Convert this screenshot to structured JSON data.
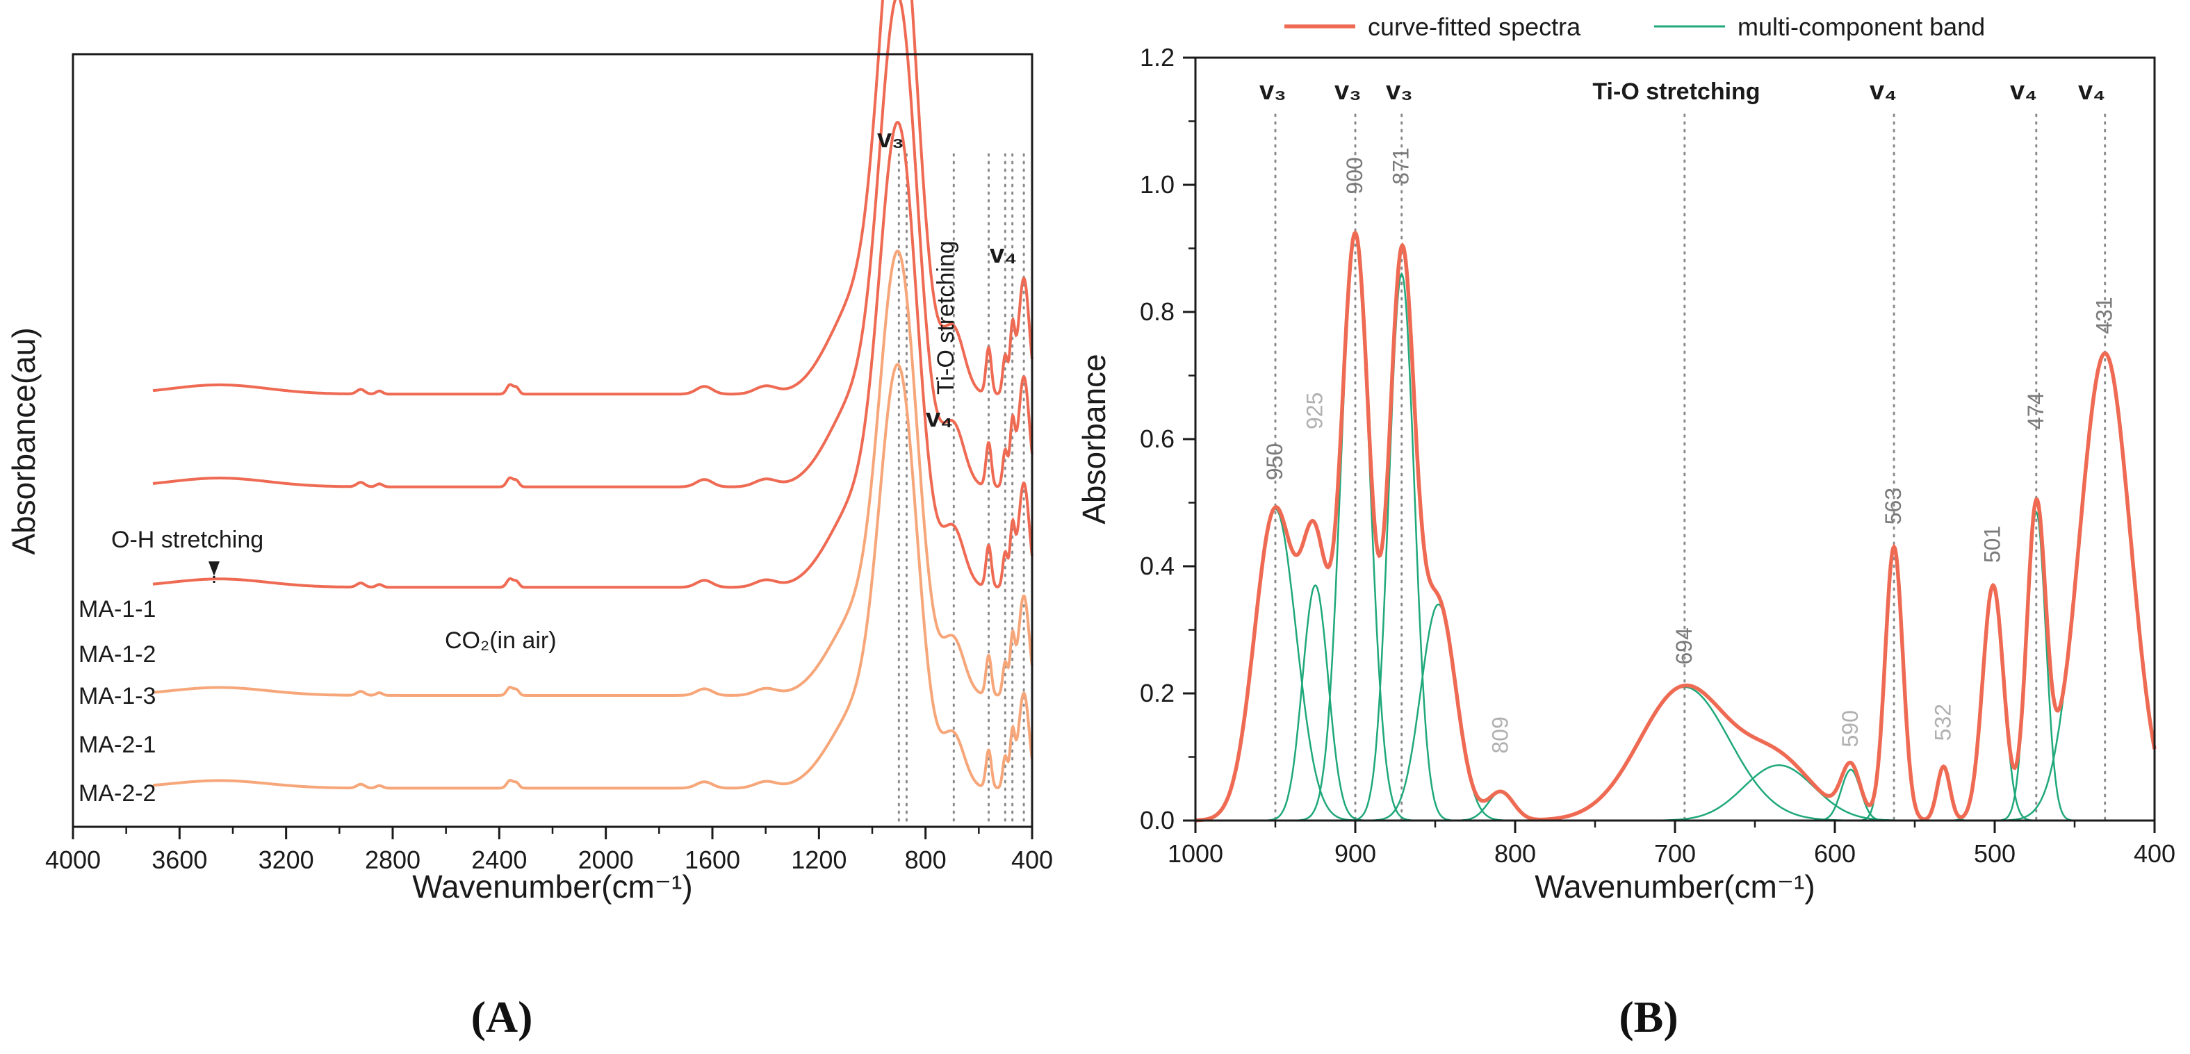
{
  "panelA": {
    "label": "(A)",
    "xlabel": "Wavenumber(cm⁻¹)",
    "ylabel": "Absorbance(au)",
    "xticks": [
      "4000",
      "3600",
      "3200",
      "2800",
      "2400",
      "2000",
      "1600",
      "1200",
      "800",
      "400"
    ],
    "annotations": {
      "oh": "O-H stretching",
      "co2": "CO₂(in air)",
      "tio": "Ti-O stretching",
      "v3": "v₃",
      "v4a": "v₄",
      "v4b": "v₄"
    },
    "sample_labels": [
      "MA-1-1",
      "MA-1-2",
      "MA-1-3",
      "MA-2-1",
      "MA-2-2"
    ],
    "colors": {
      "ma1": "#ef6a53",
      "ma2": "#f6a679"
    }
  },
  "panelB": {
    "label": "(B)",
    "xlabel": "Wavenumber(cm⁻¹)",
    "ylabel": "Absorbance",
    "xticks": [
      "1000",
      "900",
      "800",
      "700",
      "600",
      "500",
      "400"
    ],
    "yticks": [
      "0.0",
      "0.2",
      "0.4",
      "0.6",
      "0.8",
      "1.0",
      "1.2"
    ],
    "legend": {
      "fitted": "curve-fitted spectra",
      "component": "multi-component band"
    },
    "band_labels": {
      "v3a": "v₃",
      "v3b": "v₃",
      "v3c": "v₃",
      "tio": "Ti-O stretching",
      "v4a": "v₄",
      "v4b": "v₄",
      "v4c": "v₄"
    },
    "peak_labels": [
      "950",
      "925",
      "900",
      "871",
      "809",
      "694",
      "590",
      "563",
      "532",
      "501",
      "474",
      "431"
    ],
    "colors": {
      "fitted": "#ef6a53",
      "component": "#1fa87a"
    }
  },
  "chart_data": [
    {
      "type": "line",
      "title": "",
      "xlabel": "Wavenumber(cm⁻¹)",
      "ylabel": "Absorbance(au)",
      "xlim": [
        4000,
        400
      ],
      "series": [
        {
          "name": "MA-1-1",
          "offset": 0.56,
          "scale": 1.0
        },
        {
          "name": "MA-1-2",
          "offset": 0.44,
          "scale": 0.95
        },
        {
          "name": "MA-1-3",
          "offset": 0.31,
          "scale": 0.9
        },
        {
          "name": "MA-2-1",
          "offset": 0.17,
          "scale": 0.86
        },
        {
          "name": "MA-2-2",
          "offset": 0.05,
          "scale": 0.82
        }
      ],
      "reference_lines": [
        900,
        871,
        694,
        563,
        501,
        474,
        431
      ]
    },
    {
      "type": "line",
      "title": "",
      "xlabel": "Wavenumber(cm⁻¹)",
      "ylabel": "Absorbance",
      "xlim": [
        1000,
        400
      ],
      "ylim": [
        0,
        1.2
      ],
      "series": [
        {
          "name": "curve-fitted spectra",
          "role": "sum"
        },
        {
          "name": "multi-component band",
          "role": "components"
        }
      ],
      "components": [
        {
          "center": 950,
          "height": 0.49,
          "width": 13
        },
        {
          "center": 925,
          "height": 0.37,
          "width": 8
        },
        {
          "center": 900,
          "height": 0.92,
          "width": 9
        },
        {
          "center": 871,
          "height": 0.86,
          "width": 8
        },
        {
          "center": 848,
          "height": 0.34,
          "width": 11
        },
        {
          "center": 809,
          "height": 0.045,
          "width": 8
        },
        {
          "center": 694,
          "height": 0.21,
          "width": 28
        },
        {
          "center": 635,
          "height": 0.087,
          "width": 22
        },
        {
          "center": 590,
          "height": 0.08,
          "width": 6
        },
        {
          "center": 563,
          "height": 0.43,
          "width": 5.5
        },
        {
          "center": 532,
          "height": 0.085,
          "width": 4
        },
        {
          "center": 501,
          "height": 0.37,
          "width": 6.5
        },
        {
          "center": 474,
          "height": 0.485,
          "width": 6
        },
        {
          "center": 431,
          "height": 0.735,
          "width": 16
        }
      ],
      "reference_lines": [
        950,
        900,
        871,
        694,
        563,
        474,
        431
      ]
    }
  ]
}
